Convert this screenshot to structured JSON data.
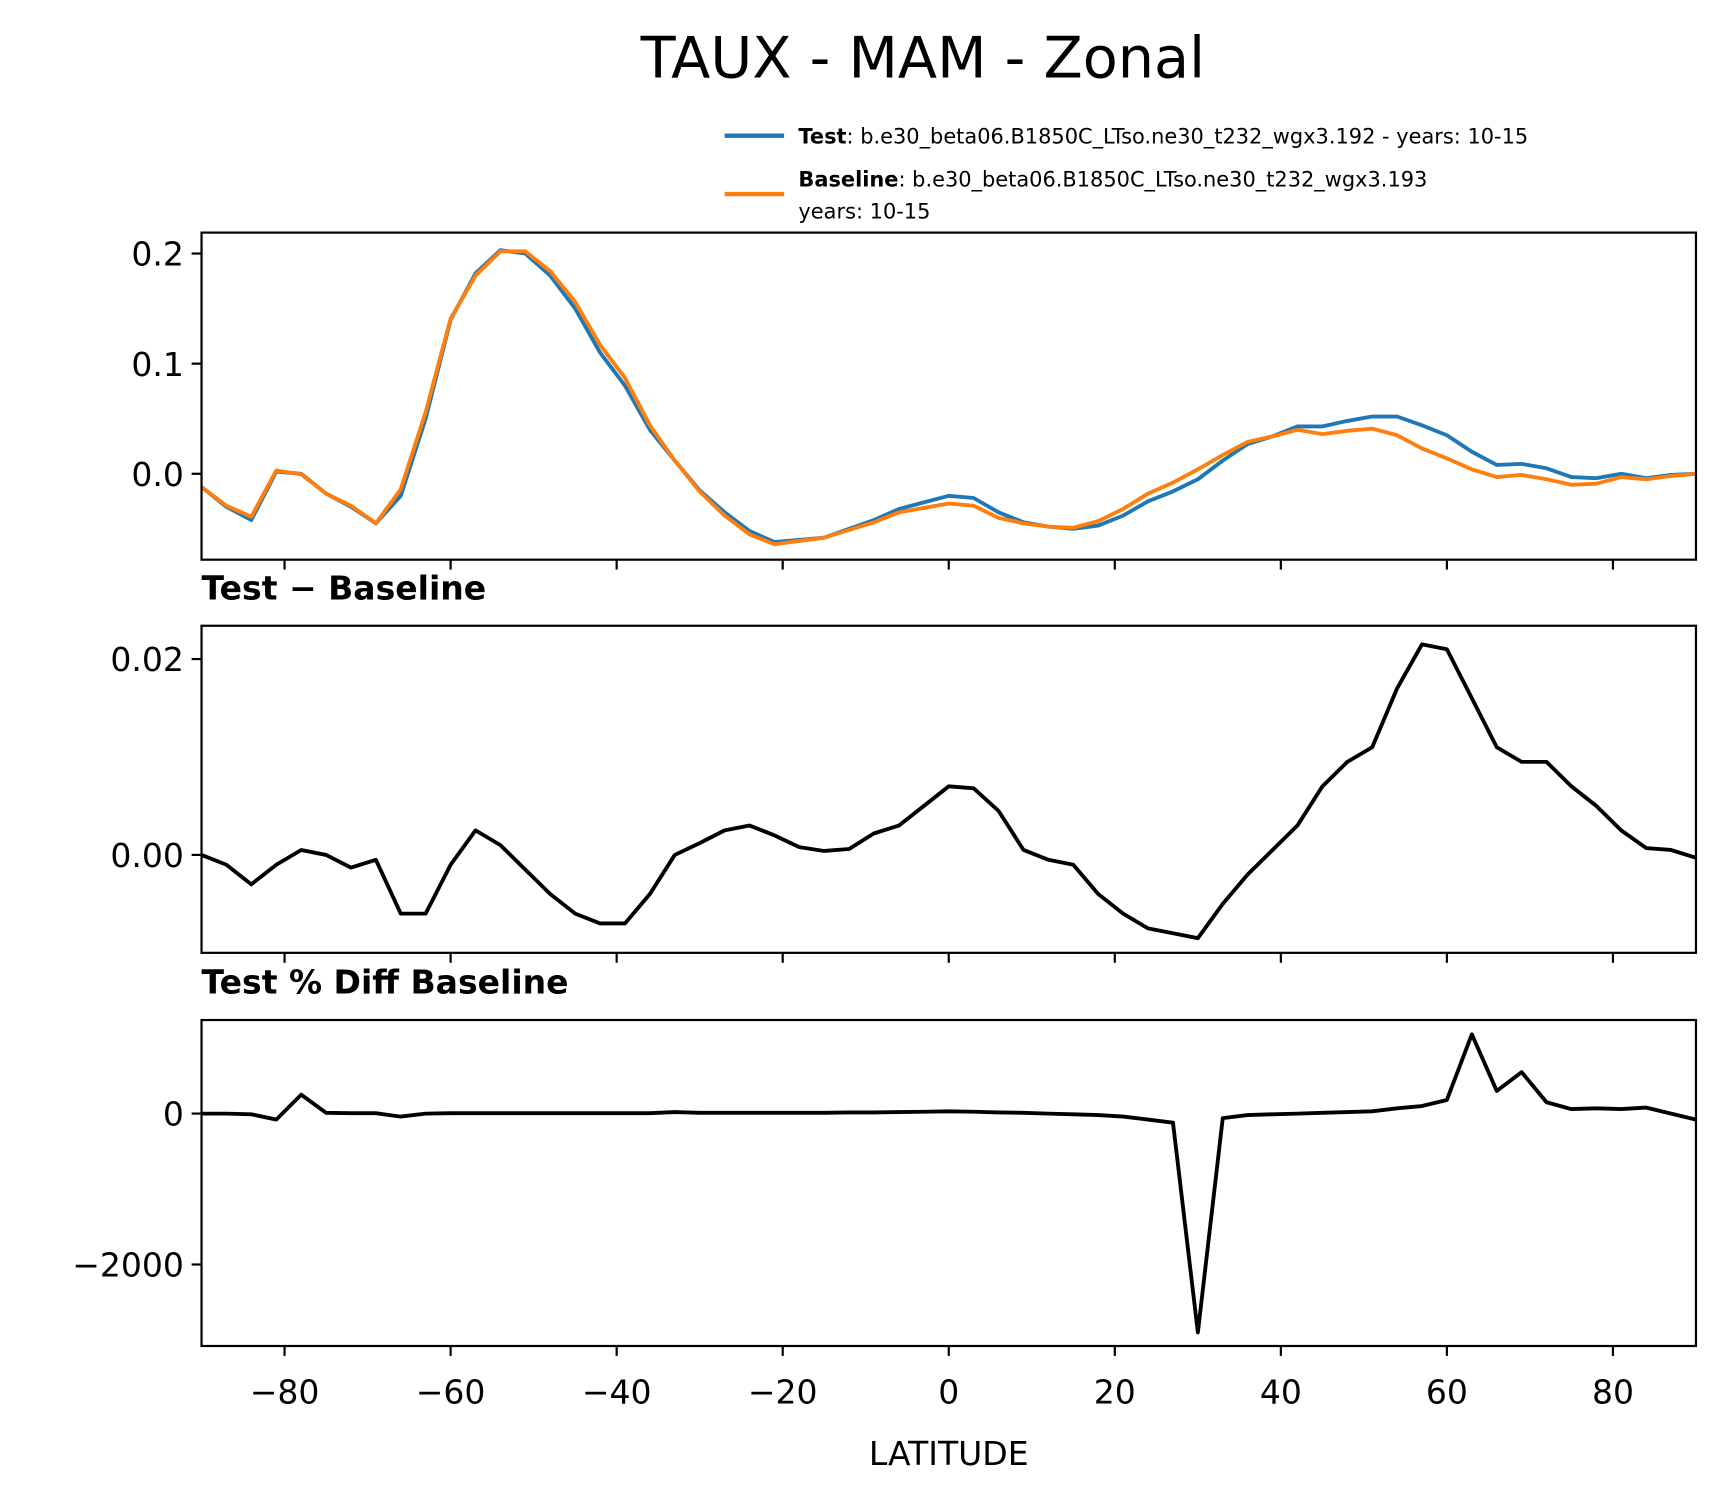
{
  "chart_data": [
    {
      "type": "line",
      "title": "TAUX - MAM - Zonal",
      "x": [
        -90,
        -87,
        -84,
        -81,
        -78,
        -75,
        -72,
        -69,
        -66,
        -63,
        -60,
        -57,
        -54,
        -51,
        -48,
        -45,
        -42,
        -39,
        -36,
        -33,
        -30,
        -27,
        -24,
        -21,
        -18,
        -15,
        -12,
        -9,
        -6,
        -3,
        0,
        3,
        6,
        9,
        12,
        15,
        18,
        21,
        24,
        27,
        30,
        33,
        36,
        39,
        42,
        45,
        48,
        51,
        54,
        57,
        60,
        63,
        66,
        69,
        72,
        75,
        78,
        81,
        84,
        87,
        90
      ],
      "series": [
        {
          "name": "Test",
          "description": ": b.e30_beta06.B1850C_LTso.ne30_t232_wgx3.192 - years: 10-15",
          "color": "#1f77b4",
          "values": [
            -0.012,
            -0.03,
            -0.042,
            0.002,
            0.0,
            -0.018,
            -0.03,
            -0.045,
            -0.02,
            0.05,
            0.14,
            0.182,
            0.203,
            0.2,
            0.18,
            0.15,
            0.11,
            0.08,
            0.04,
            0.012,
            -0.015,
            -0.035,
            -0.052,
            -0.062,
            -0.06,
            -0.058,
            -0.05,
            -0.042,
            -0.032,
            -0.026,
            -0.02,
            -0.022,
            -0.035,
            -0.044,
            -0.048,
            -0.05,
            -0.047,
            -0.038,
            -0.025,
            -0.016,
            -0.005,
            0.012,
            0.027,
            0.034,
            0.043,
            0.043,
            0.048,
            0.052,
            0.052,
            0.044,
            0.035,
            0.02,
            0.008,
            0.009,
            0.005,
            -0.003,
            -0.004,
            0.0,
            -0.004,
            -0.001,
            0.0
          ]
        },
        {
          "name": "Baseline",
          "description": ": b.e30_beta06.B1850C_LTso.ne30_t232_wgx3.193",
          "description2": "years: 10-15",
          "color": "#ff7f0e",
          "values": [
            -0.012,
            -0.029,
            -0.039,
            0.003,
            -0.0005,
            -0.018,
            -0.029,
            -0.045,
            -0.014,
            0.056,
            0.141,
            0.18,
            0.202,
            0.202,
            0.184,
            0.156,
            0.117,
            0.087,
            0.044,
            0.012,
            -0.016,
            -0.038,
            -0.055,
            -0.064,
            -0.061,
            -0.058,
            -0.051,
            -0.044,
            -0.035,
            -0.031,
            -0.027,
            -0.029,
            -0.04,
            -0.045,
            -0.048,
            -0.049,
            -0.043,
            -0.032,
            -0.018,
            -0.008,
            0.004,
            0.017,
            0.029,
            0.034,
            0.04,
            0.036,
            0.039,
            0.041,
            0.035,
            0.023,
            0.014,
            0.004,
            -0.003,
            -0.001,
            -0.005,
            -0.01,
            -0.009,
            -0.003,
            -0.005,
            -0.002,
            0.0
          ]
        }
      ],
      "xlim": [
        -90,
        90
      ],
      "ylim": [
        -0.078,
        0.219
      ],
      "yticks": [
        {
          "value": 0,
          "label": "0.0"
        },
        0.1,
        0.2
      ]
    },
    {
      "type": "line",
      "title": "Test − Baseline",
      "x": [
        -90,
        -87,
        -84,
        -81,
        -78,
        -75,
        -72,
        -69,
        -66,
        -63,
        -60,
        -57,
        -54,
        -51,
        -48,
        -45,
        -42,
        -39,
        -36,
        -33,
        -30,
        -27,
        -24,
        -21,
        -18,
        -15,
        -12,
        -9,
        -6,
        -3,
        0,
        3,
        6,
        9,
        12,
        15,
        18,
        21,
        24,
        27,
        30,
        33,
        36,
        39,
        42,
        45,
        48,
        51,
        54,
        57,
        60,
        63,
        66,
        69,
        72,
        75,
        78,
        81,
        84,
        87,
        90
      ],
      "series": [
        {
          "color": "#000000",
          "values": [
            0.0,
            -0.001,
            -0.003,
            -0.001,
            0.0005,
            0.0,
            -0.0013,
            -0.0005,
            -0.006,
            -0.006,
            -0.001,
            0.0025,
            0.001,
            -0.0015,
            -0.004,
            -0.006,
            -0.007,
            -0.007,
            -0.004,
            0.0,
            0.0012,
            0.0025,
            0.003,
            0.002,
            0.0008,
            0.0004,
            0.0006,
            0.0022,
            0.003,
            0.005,
            0.007,
            0.0068,
            0.0045,
            0.0005,
            -0.0005,
            -0.001,
            -0.004,
            -0.006,
            -0.0075,
            -0.008,
            -0.0085,
            -0.005,
            -0.002,
            0.0005,
            0.003,
            0.007,
            0.0095,
            0.011,
            0.017,
            0.0215,
            0.021,
            0.016,
            0.011,
            0.0095,
            0.0095,
            0.007,
            0.005,
            0.0025,
            0.0007,
            0.0005,
            -0.0003
          ]
        }
      ],
      "xlim": [
        -90,
        90
      ],
      "ylim": [
        -0.01,
        0.0234
      ],
      "yticks": [
        {
          "value": 0,
          "label": "0.00"
        },
        0.02
      ]
    },
    {
      "type": "line",
      "title": "Test % Diff Baseline",
      "xlabel": "LATITUDE",
      "x": [
        -90,
        -87,
        -84,
        -81,
        -78,
        -75,
        -72,
        -69,
        -66,
        -63,
        -60,
        -57,
        -54,
        -51,
        -48,
        -45,
        -42,
        -39,
        -36,
        -33,
        -30,
        -27,
        -24,
        -21,
        -18,
        -15,
        -12,
        -9,
        -6,
        -3,
        0,
        3,
        6,
        9,
        12,
        15,
        18,
        21,
        24,
        27,
        30,
        33,
        36,
        39,
        42,
        45,
        48,
        51,
        54,
        57,
        60,
        63,
        66,
        69,
        72,
        75,
        78,
        81,
        84,
        87,
        90
      ],
      "series": [
        {
          "color": "#000000",
          "values": [
            0,
            0,
            -10,
            -80,
            250,
            10,
            5,
            5,
            -40,
            0,
            5,
            5,
            5,
            5,
            5,
            5,
            5,
            5,
            5,
            20,
            10,
            10,
            10,
            10,
            10,
            10,
            15,
            15,
            20,
            25,
            30,
            25,
            15,
            10,
            0,
            -10,
            -20,
            -40,
            -80,
            -120,
            -2900,
            -60,
            -20,
            -10,
            0,
            10,
            20,
            30,
            70,
            100,
            180,
            1050,
            300,
            550,
            150,
            60,
            70,
            60,
            80,
            0,
            -80
          ]
        }
      ],
      "xlim": [
        -90,
        90
      ],
      "ylim": [
        -3080,
        1240
      ],
      "yticks": [
        {
          "value": -2000,
          "label": "−2000"
        },
        0
      ],
      "xticks": [
        {
          "value": -80,
          "label": "−80"
        },
        {
          "value": -60,
          "label": "−60"
        },
        {
          "value": -40,
          "label": "−40"
        },
        {
          "value": -20,
          "label": "−20"
        },
        0,
        20,
        40,
        60,
        80
      ]
    }
  ]
}
